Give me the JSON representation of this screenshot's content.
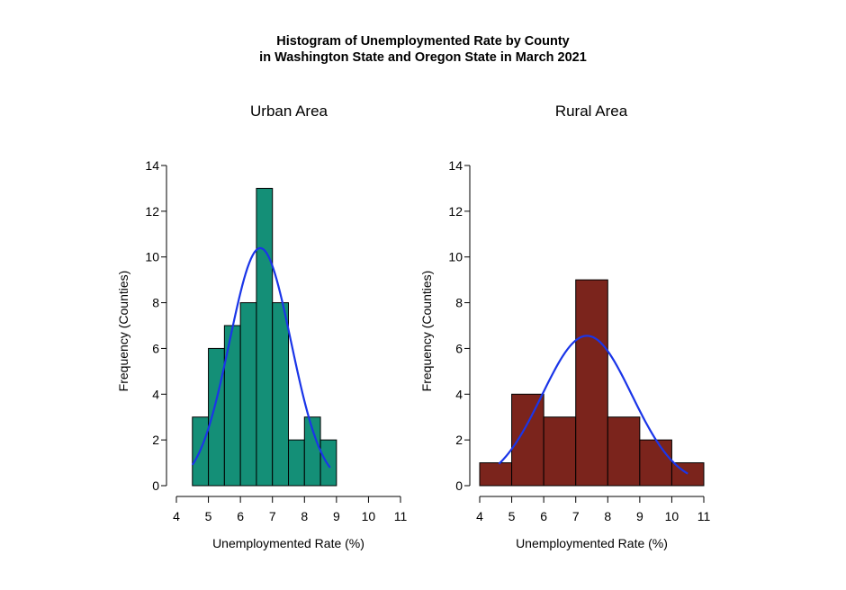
{
  "figure": {
    "title_line1": "Histogram of Unemploymented Rate by County",
    "title_line2": "in Washington State and Oregon State in March 2021"
  },
  "chart_data": [
    {
      "type": "bar",
      "title": "Urban Area",
      "xlabel": "Unemploymented Rate (%)",
      "ylabel": "Frequency (Counties)",
      "xlim": [
        4,
        11
      ],
      "ylim": [
        0,
        14
      ],
      "xticks": [
        4,
        5,
        6,
        7,
        8,
        9,
        10,
        11
      ],
      "yticks": [
        0,
        2,
        4,
        6,
        8,
        10,
        12,
        14
      ],
      "bins": [
        {
          "x0": 4.5,
          "x1": 5.0,
          "count": 3
        },
        {
          "x0": 5.0,
          "x1": 5.5,
          "count": 6
        },
        {
          "x0": 5.5,
          "x1": 6.0,
          "count": 7
        },
        {
          "x0": 6.0,
          "x1": 6.5,
          "count": 8
        },
        {
          "x0": 6.5,
          "x1": 7.0,
          "count": 13
        },
        {
          "x0": 7.0,
          "x1": 7.5,
          "count": 8
        },
        {
          "x0": 7.5,
          "x1": 8.0,
          "count": 2
        },
        {
          "x0": 8.0,
          "x1": 8.5,
          "count": 3
        },
        {
          "x0": 8.5,
          "x1": 9.0,
          "count": 2
        }
      ],
      "bar_color": "#148F77",
      "density_curve": {
        "mean": 6.62,
        "sd": 0.96,
        "scale": 25,
        "x_range": [
          4.5,
          8.8
        ],
        "color": "#1a35e8"
      }
    },
    {
      "type": "bar",
      "title": "Rural Area",
      "xlabel": "Unemploymented Rate (%)",
      "ylabel": "Frequency (Counties)",
      "xlim": [
        4,
        11
      ],
      "ylim": [
        0,
        14
      ],
      "xticks": [
        4,
        5,
        6,
        7,
        8,
        9,
        10,
        11
      ],
      "yticks": [
        0,
        2,
        4,
        6,
        8,
        10,
        12,
        14
      ],
      "bins": [
        {
          "x0": 4.0,
          "x1": 5.0,
          "count": 1
        },
        {
          "x0": 5.0,
          "x1": 6.0,
          "count": 4
        },
        {
          "x0": 6.0,
          "x1": 7.0,
          "count": 3
        },
        {
          "x0": 7.0,
          "x1": 8.0,
          "count": 9
        },
        {
          "x0": 8.0,
          "x1": 9.0,
          "count": 3
        },
        {
          "x0": 9.0,
          "x1": 10.0,
          "count": 2
        },
        {
          "x0": 10.0,
          "x1": 11.0,
          "count": 1
        }
      ],
      "bar_color": "#7B241C",
      "density_curve": {
        "mean": 7.35,
        "sd": 1.4,
        "scale": 23,
        "x_range": [
          4.6,
          10.5
        ],
        "color": "#1a35e8"
      }
    }
  ]
}
